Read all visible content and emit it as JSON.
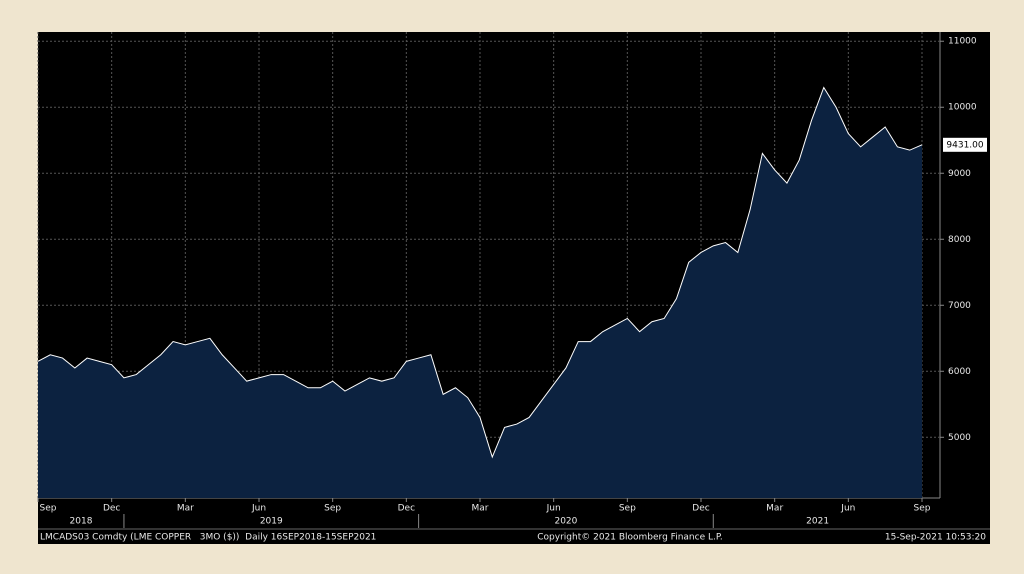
{
  "chart_data": {
    "type": "area",
    "categories": [
      "Sep",
      null,
      null,
      null,
      null,
      null,
      "Dec",
      null,
      null,
      null,
      null,
      null,
      "Mar",
      null,
      null,
      null,
      null,
      null,
      "Jun",
      null,
      null,
      null,
      null,
      null,
      "Sep",
      null,
      null,
      null,
      null,
      null,
      "Dec",
      null,
      null,
      null,
      null,
      null,
      "Mar",
      null,
      null,
      null,
      null,
      null,
      "Jun",
      null,
      null,
      null,
      null,
      null,
      "Sep",
      null,
      null,
      null,
      null,
      null,
      "Dec",
      null,
      null,
      null,
      null,
      null,
      "Mar",
      null,
      null,
      null,
      null,
      null,
      "Jun",
      null,
      null,
      null,
      null,
      null,
      "Sep"
    ],
    "years": [
      "2018",
      "2019",
      "2020",
      "2021"
    ],
    "values": [
      6150,
      6250,
      6200,
      6050,
      6200,
      6150,
      6100,
      5900,
      5950,
      6100,
      6250,
      6450,
      6400,
      6450,
      6500,
      6250,
      6050,
      5850,
      5900,
      5950,
      5950,
      5850,
      5750,
      5750,
      5850,
      5700,
      5800,
      5900,
      5850,
      5900,
      6150,
      6200,
      6250,
      5650,
      5750,
      5600,
      5300,
      4700,
      5150,
      5200,
      5300,
      5550,
      5800,
      6050,
      6450,
      6450,
      6600,
      6700,
      6800,
      6600,
      6750,
      6800,
      7100,
      7650,
      7800,
      7900,
      7950,
      7800,
      8450,
      9300,
      9050,
      8850,
      9200,
      9800,
      10300,
      10000,
      9600,
      9400,
      9550,
      9700,
      9400,
      9350,
      9431
    ],
    "value_labels": [
      null,
      null,
      null,
      null,
      null,
      null,
      null,
      null,
      null,
      null,
      null,
      null,
      null,
      null,
      null,
      null,
      null,
      null,
      null,
      null,
      null,
      null,
      null,
      null,
      null,
      null,
      null,
      null,
      null,
      null,
      null,
      null,
      null,
      null,
      null,
      null,
      null,
      null,
      null,
      null,
      null,
      null,
      null,
      null,
      null,
      null,
      null,
      null,
      null,
      null,
      null,
      null,
      null,
      null,
      null,
      null,
      null,
      null,
      null,
      null,
      null,
      null,
      null,
      null,
      null,
      null,
      null,
      null,
      null,
      null,
      null,
      null,
      "9431.00"
    ],
    "color": "#ffffff",
    "fill": "#0c2240",
    "ylim": [
      4080,
      11140
    ],
    "yticks": [
      5000,
      6000,
      7000,
      8000,
      9000,
      10000,
      11000
    ],
    "grid": true,
    "source": "LMCADS03 Comdty (LME COPPER   3MO ($))  Daily 16SEP2018-15SEP2021",
    "copyright": "Copyright© 2021 Bloomberg Finance L.P.",
    "timestamp": "15-Sep-2021 10:53:20"
  }
}
